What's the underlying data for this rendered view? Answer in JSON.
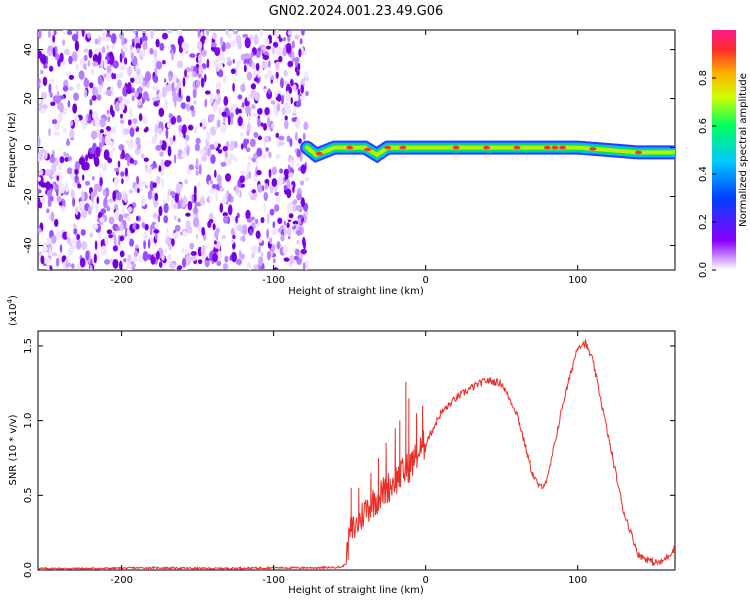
{
  "figure": {
    "title": "GN02.2024.001.23.49.G06"
  },
  "chart_data": [
    {
      "type": "heatmap",
      "panel": "spectrogram",
      "xlabel": "Height of straight line (km)",
      "ylabel": "Frequency (Hz)",
      "xlim": [
        -255,
        164
      ],
      "ylim": [
        -50,
        48
      ],
      "xticks": [
        -200,
        -100,
        0,
        100
      ],
      "yticks": [
        -40,
        -20,
        0,
        20,
        40
      ],
      "colorbar": {
        "label": "Normalized spectral amplitude",
        "range": [
          0.0,
          1.0
        ],
        "ticks": [
          "0.0",
          "0.2",
          "0.4",
          "0.6",
          "0.8"
        ],
        "colormap": [
          "#ffffff",
          "#8a00ff",
          "#0040ff",
          "#00c8ff",
          "#00ff60",
          "#d0ff00",
          "#ffb000",
          "#ff2a2a",
          "#ff1a8c"
        ]
      },
      "noise_region_x": [
        -255,
        -78
      ],
      "signal_band": {
        "x_range": [
          -78,
          164
        ],
        "center_freq": [
          [
            -78,
            0
          ],
          [
            -72,
            -3
          ],
          [
            -60,
            0
          ],
          [
            -50,
            0
          ],
          [
            -40,
            0
          ],
          [
            -32,
            -3
          ],
          [
            -25,
            0
          ],
          [
            -15,
            0
          ],
          [
            0,
            0
          ],
          [
            50,
            0
          ],
          [
            100,
            0
          ],
          [
            140,
            -2
          ],
          [
            164,
            -2
          ]
        ]
      }
    },
    {
      "type": "line",
      "panel": "snr",
      "xlabel": "Height of straight line (km)",
      "ylabel": "SNR (10 * v/v)",
      "ylabel_scale": "(x10",
      "ylabel_scale_exp": "4",
      "ylabel_scale_close": ")",
      "xlim": [
        -255,
        164
      ],
      "ylim": [
        0,
        1.6
      ],
      "xticks": [
        -200,
        -100,
        0,
        100
      ],
      "yticks": [
        "0.0",
        "0.5",
        "1.0",
        "1.5"
      ],
      "color": "#e8302a",
      "series": [
        {
          "x": [
            -255,
            -220,
            -180,
            -140,
            -100,
            -70,
            -55,
            -52,
            -50,
            -45,
            -40,
            -30,
            -20,
            -10,
            0,
            10,
            20,
            30,
            40,
            50,
            60,
            70,
            75,
            80,
            90,
            100,
            105,
            110,
            120,
            130,
            140,
            150,
            155,
            160,
            164
          ],
          "y": [
            0.01,
            0.01,
            0.015,
            0.01,
            0.015,
            0.015,
            0.02,
            0.05,
            0.25,
            0.3,
            0.4,
            0.5,
            0.6,
            0.7,
            0.85,
            1.05,
            1.15,
            1.22,
            1.27,
            1.25,
            1.05,
            0.65,
            0.55,
            0.6,
            1.1,
            1.5,
            1.52,
            1.4,
            0.9,
            0.4,
            0.1,
            0.05,
            0.05,
            0.1,
            0.15
          ]
        }
      ],
      "spikes": [
        {
          "x": -49,
          "y": 0.55
        },
        {
          "x": -44,
          "y": 0.55
        },
        {
          "x": -36,
          "y": 0.65
        },
        {
          "x": -31,
          "y": 0.75
        },
        {
          "x": -26,
          "y": 0.85
        },
        {
          "x": -20,
          "y": 0.95
        },
        {
          "x": -17,
          "y": 1.0
        },
        {
          "x": -13,
          "y": 1.26
        },
        {
          "x": -11,
          "y": 1.15
        },
        {
          "x": -6,
          "y": 1.05
        },
        {
          "x": -2,
          "y": 1.1
        }
      ]
    }
  ]
}
